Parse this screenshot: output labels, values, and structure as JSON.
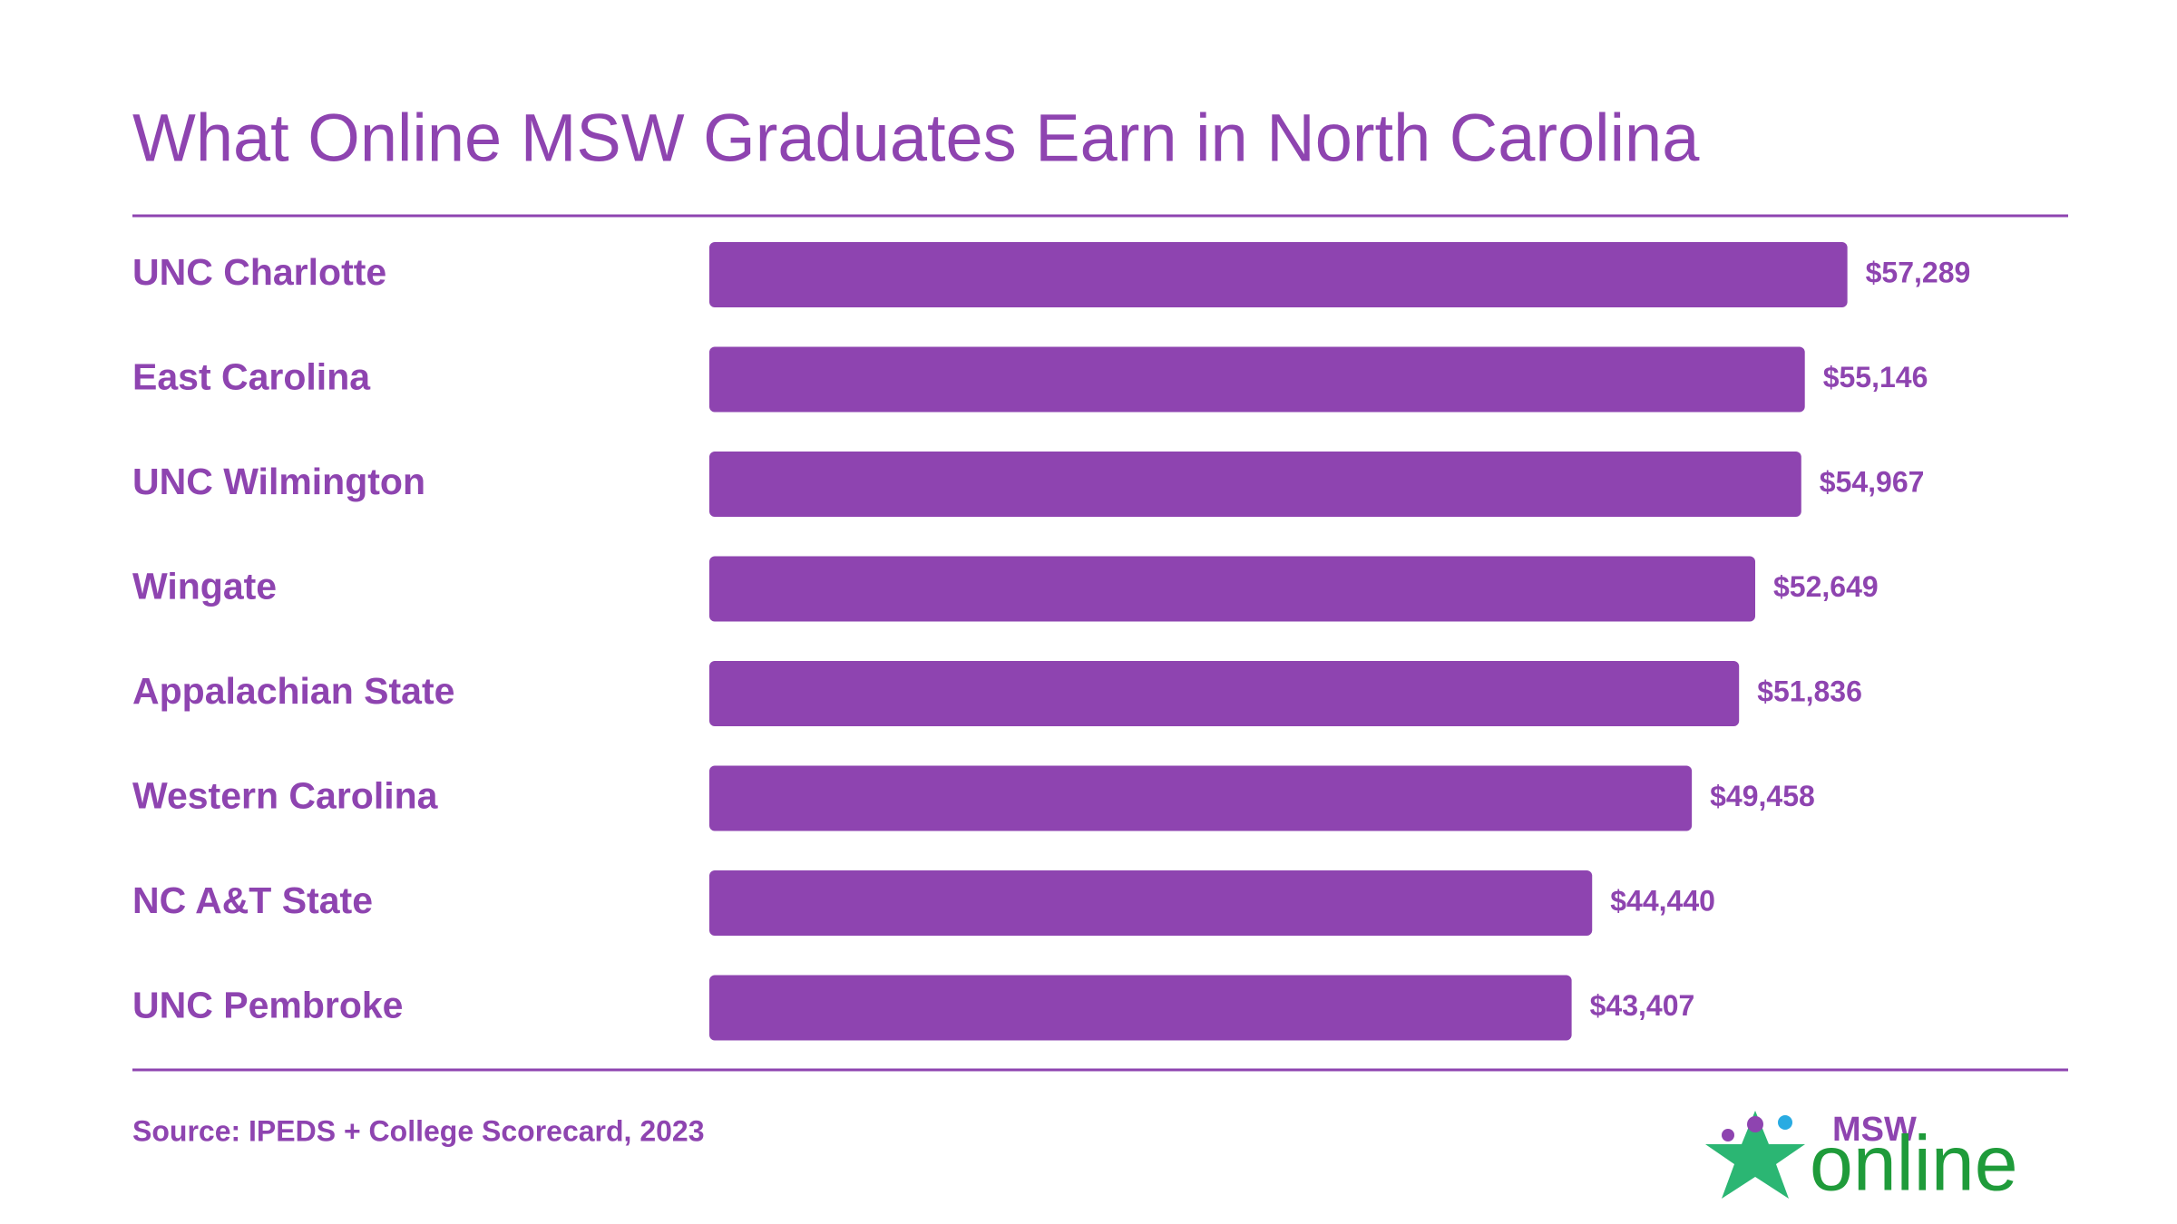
{
  "chart_data": {
    "type": "bar",
    "orientation": "horizontal",
    "title": "What Online MSW Graduates Earn in North Carolina",
    "categories": [
      "UNC Charlotte",
      "East Carolina",
      "UNC Wilmington",
      "Wingate",
      "Appalachian State",
      "Western Carolina",
      "NC A&T State",
      "UNC Pembroke"
    ],
    "values": [
      57289,
      55146,
      54967,
      52649,
      51836,
      49458,
      44440,
      43407
    ],
    "value_labels": [
      "$57,289",
      "$55,146",
      "$54,967",
      "$52,649",
      "$51,836",
      "$49,458",
      "$44,440",
      "$43,407"
    ],
    "color": "#8e44b0",
    "source": "Source: IPEDS + College Scorecard, 2023",
    "logo": {
      "top": "MSW",
      "bottom": "online"
    }
  }
}
